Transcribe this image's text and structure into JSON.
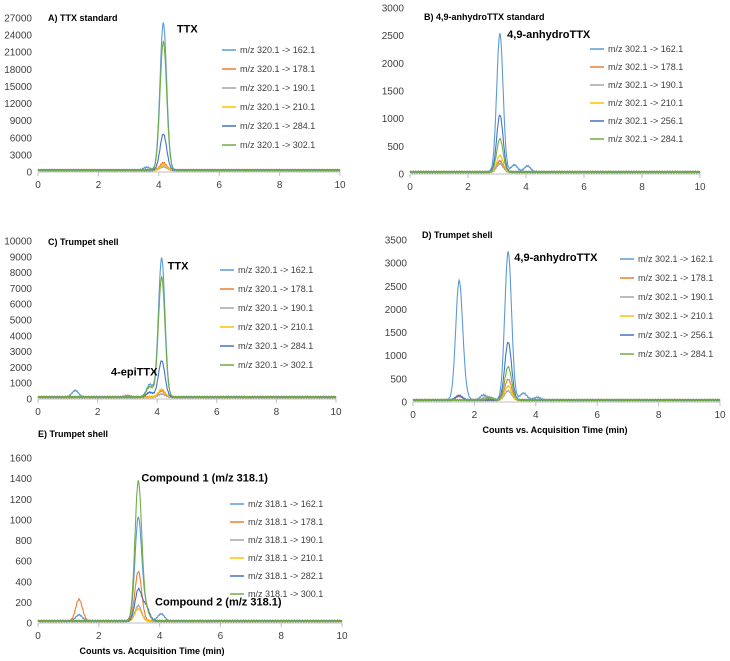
{
  "palette": {
    "sky": "#5B9BD5",
    "orange": "#ED7D31",
    "gray": "#A5A5A5",
    "gold": "#FFC000",
    "navy": "#4472C4",
    "green": "#70AD47",
    "axis": "#BFBFBF"
  },
  "chart_data": [
    {
      "type": "line",
      "title": "A) TTX standard",
      "xlabel": "",
      "xlim": [
        0,
        10
      ],
      "ylim": [
        0,
        27000
      ],
      "xticks": [
        0,
        2,
        4,
        6,
        8,
        10
      ],
      "yticks": [
        0,
        3000,
        6000,
        9000,
        12000,
        15000,
        18000,
        21000,
        24000,
        27000
      ],
      "grid": false,
      "legend_position": "right",
      "annotations": [
        {
          "text": "TTX",
          "x": 4.6,
          "y": 24500
        }
      ],
      "series": [
        {
          "name": "m/z 320.1 -> 162.1",
          "color": "sky",
          "peaks": [
            [
              4.15,
              25800
            ],
            [
              3.6,
              500
            ]
          ]
        },
        {
          "name": "m/z 320.1 -> 178.1",
          "color": "orange",
          "peaks": [
            [
              4.15,
              1300
            ]
          ]
        },
        {
          "name": "m/z 320.1 -> 190.1",
          "color": "gray",
          "peaks": [
            [
              4.15,
              600
            ]
          ]
        },
        {
          "name": "m/z 320.1 -> 210.1",
          "color": "gold",
          "peaks": [
            [
              4.15,
              900
            ]
          ]
        },
        {
          "name": "m/z 320.1 -> 284.1",
          "color": "navy",
          "peaks": [
            [
              4.15,
              6300
            ]
          ]
        },
        {
          "name": "m/z 320.1 -> 302.1",
          "color": "green",
          "peaks": [
            [
              4.15,
              22500
            ]
          ]
        }
      ]
    },
    {
      "type": "line",
      "title": "B) 4,9-anhydroTTX standard",
      "xlabel": "",
      "xlim": [
        0,
        10
      ],
      "ylim": [
        0,
        3000
      ],
      "xticks": [
        0,
        2,
        4,
        6,
        8,
        10
      ],
      "yticks": [
        0,
        500,
        1000,
        1500,
        2000,
        2500,
        3000
      ],
      "grid": false,
      "legend_position": "right",
      "annotations": [
        {
          "text": "4,9-anhydroTTX",
          "x": 3.35,
          "y": 2460
        }
      ],
      "series": [
        {
          "name": "m/z 302.1 -> 162.1",
          "color": "sky",
          "peaks": [
            [
              3.1,
              2500
            ],
            [
              3.6,
              130
            ],
            [
              4.05,
              110
            ]
          ]
        },
        {
          "name": "m/z 302.1 -> 178.1",
          "color": "orange",
          "peaks": [
            [
              3.1,
              200
            ]
          ]
        },
        {
          "name": "m/z 302.1 -> 190.1",
          "color": "gray",
          "peaks": [
            [
              3.1,
              150
            ]
          ]
        },
        {
          "name": "m/z 302.1 -> 210.1",
          "color": "gold",
          "peaks": [
            [
              3.1,
              300
            ]
          ]
        },
        {
          "name": "m/z 302.1 -> 256.1",
          "color": "navy",
          "peaks": [
            [
              3.1,
              1030
            ]
          ]
        },
        {
          "name": "m/z 302.1 -> 284.1",
          "color": "green",
          "peaks": [
            [
              3.1,
              600
            ]
          ]
        }
      ]
    },
    {
      "type": "line",
      "title": "C) Trumpet shell",
      "xlabel": "",
      "xlim": [
        0,
        10
      ],
      "ylim": [
        0,
        10000
      ],
      "xticks": [
        0,
        2,
        4,
        6,
        8,
        10
      ],
      "yticks": [
        0,
        1000,
        2000,
        3000,
        4000,
        5000,
        6000,
        7000,
        8000,
        9000,
        10000
      ],
      "grid": false,
      "legend_position": "right",
      "annotations": [
        {
          "text": "TTX",
          "x": 4.35,
          "y": 8200
        },
        {
          "text": "4-epiTTX",
          "x": 2.45,
          "y": 1500
        }
      ],
      "series": [
        {
          "name": "m/z 320.1 -> 162.1",
          "color": "sky",
          "peaks": [
            [
              4.15,
              8800
            ],
            [
              3.75,
              800
            ],
            [
              1.25,
              420
            ]
          ]
        },
        {
          "name": "m/z 320.1 -> 178.1",
          "color": "orange",
          "peaks": [
            [
              4.15,
              400
            ],
            [
              3.0,
              100
            ]
          ]
        },
        {
          "name": "m/z 320.1 -> 190.1",
          "color": "gray",
          "peaks": [
            [
              4.15,
              200
            ]
          ]
        },
        {
          "name": "m/z 320.1 -> 210.1",
          "color": "gold",
          "peaks": [
            [
              4.15,
              500
            ]
          ]
        },
        {
          "name": "m/z 320.1 -> 284.1",
          "color": "navy",
          "peaks": [
            [
              4.15,
              2300
            ],
            [
              3.75,
              300
            ]
          ]
        },
        {
          "name": "m/z 320.1 -> 302.1",
          "color": "green",
          "peaks": [
            [
              4.15,
              7600
            ],
            [
              3.75,
              650
            ]
          ]
        }
      ]
    },
    {
      "type": "line",
      "title": "D) Trumpet shell",
      "xlabel": "Counts vs. Acquisition Time (min)",
      "xlim": [
        0,
        10
      ],
      "ylim": [
        0,
        3500
      ],
      "xticks": [
        0,
        2,
        4,
        6,
        8,
        10
      ],
      "yticks": [
        0,
        500,
        1000,
        1500,
        2000,
        2500,
        3000,
        3500
      ],
      "grid": false,
      "legend_position": "right",
      "annotations": [
        {
          "text": "4,9-anhydroTTX",
          "x": 3.3,
          "y": 3050
        }
      ],
      "series": [
        {
          "name": "m/z 302.1 -> 162.1",
          "color": "sky",
          "peaks": [
            [
              3.1,
              3200
            ],
            [
              1.5,
              2500
            ],
            [
              1.65,
              200
            ],
            [
              2.3,
              110
            ],
            [
              3.6,
              150
            ],
            [
              4.05,
              60
            ]
          ]
        },
        {
          "name": "m/z 302.1 -> 178.1",
          "color": "orange",
          "peaks": [
            [
              3.1,
              450
            ],
            [
              1.5,
              80
            ]
          ]
        },
        {
          "name": "m/z 302.1 -> 190.1",
          "color": "gray",
          "peaks": [
            [
              3.1,
              200
            ],
            [
              2.4,
              80
            ]
          ]
        },
        {
          "name": "m/z 302.1 -> 210.1",
          "color": "gold",
          "peaks": [
            [
              3.1,
              300
            ]
          ]
        },
        {
          "name": "m/z 302.1 -> 256.1",
          "color": "navy",
          "peaks": [
            [
              3.1,
              1250
            ],
            [
              1.5,
              100
            ]
          ]
        },
        {
          "name": "m/z 302.1 -> 284.1",
          "color": "green",
          "peaks": [
            [
              3.1,
              720
            ],
            [
              2.5,
              60
            ]
          ]
        }
      ]
    },
    {
      "type": "line",
      "title": "E) Trumpet shell",
      "xlabel": "Counts vs. Acquisition  Time (min)",
      "xlim": [
        0,
        10
      ],
      "ylim": [
        0,
        1600
      ],
      "xticks": [
        0,
        2,
        4,
        6,
        8,
        10
      ],
      "yticks": [
        0,
        200,
        400,
        600,
        800,
        1000,
        1200,
        1400,
        1600
      ],
      "grid": false,
      "legend_position": "right",
      "annotations": [
        {
          "text": "Compound 1 (m/z 318.1)",
          "x": 3.4,
          "y": 1370
        },
        {
          "text": "Compound 2 (m/z 318.1)",
          "x": 3.85,
          "y": 170
        }
      ],
      "series": [
        {
          "name": "m/z 318.1 -> 162.1",
          "color": "sky",
          "peaks": [
            [
              3.3,
              1000
            ],
            [
              3.55,
              120
            ],
            [
              4.05,
              70
            ],
            [
              1.35,
              60
            ]
          ]
        },
        {
          "name": "m/z 318.1 -> 178.1",
          "color": "orange",
          "peaks": [
            [
              3.3,
              480
            ],
            [
              1.35,
              210
            ]
          ]
        },
        {
          "name": "m/z 318.1 -> 190.1",
          "color": "gray",
          "peaks": [
            [
              3.3,
              150
            ]
          ]
        },
        {
          "name": "m/z 318.1 -> 210.1",
          "color": "gold",
          "peaks": [
            [
              3.3,
              120
            ]
          ]
        },
        {
          "name": "m/z 318.1 -> 282.1",
          "color": "navy",
          "peaks": [
            [
              3.3,
              300
            ],
            [
              3.55,
              140
            ]
          ]
        },
        {
          "name": "m/z 318.1 -> 300.1",
          "color": "green",
          "peaks": [
            [
              3.3,
              1350
            ],
            [
              3.55,
              100
            ]
          ]
        }
      ]
    }
  ]
}
